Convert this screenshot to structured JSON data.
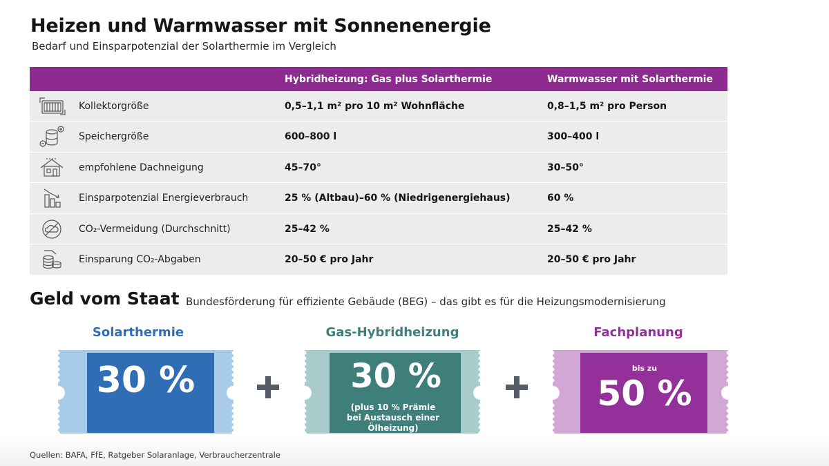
{
  "header": {
    "title": "Heizen und Warmwasser mit Sonnenenergie",
    "subtitle": "Bedarf und Einsparpotenzial der Solarthermie im Vergleich"
  },
  "table": {
    "columns": [
      "Hybridheizung: Gas plus Solarthermie",
      "Warmwasser mit Solarthermie"
    ],
    "rows": [
      {
        "icon": "collector-panel-icon",
        "label": "Kollektorgröße",
        "v1": "0,5–1,1 m² pro 10 m² Wohnfläche",
        "v2": "0,8–1,5 m² pro Person"
      },
      {
        "icon": "storage-tank-icon",
        "label": "Speichergröße",
        "v1": "600–800 l",
        "v2": "300–400 l"
      },
      {
        "icon": "house-roof-icon",
        "label": "empfohlene Dachneigung",
        "v1": "45–70°",
        "v2": "30–50°"
      },
      {
        "icon": "bar-chart-down-icon",
        "label": "Einsparpotenzial Energieverbrauch",
        "v1": "25 % (Altbau)–60 % (Niedrigenergiehaus)",
        "v2": "60 %"
      },
      {
        "icon": "co2-cloud-crossed-icon",
        "label": "CO₂-Vermeidung (Durchschnitt)",
        "v1": "25–42 %",
        "v2": "25–42 %"
      },
      {
        "icon": "coins-stack-icon",
        "label": "Einsparung CO₂-Abgaben",
        "v1": "20–50 € pro Jahr",
        "v2": "20–50 € pro Jahr"
      }
    ]
  },
  "funding": {
    "title": "Geld vom Staat",
    "subtitle": "Bundesförderung für effiziente Gebäude (BEG) – das gibt es für die Heizungsmodernisierung",
    "items": [
      {
        "category": "Solarthermie",
        "value": "30 %",
        "note": "",
        "prefix": ""
      },
      {
        "category": "Gas-Hybridheizung",
        "value": "30 %",
        "note": "(plus 10 % Prämie bei Austausch einer Ölheizung)",
        "prefix": ""
      },
      {
        "category": "Fachplanung",
        "value": "50 %",
        "note": "",
        "prefix": "bis zu"
      }
    ]
  },
  "footer": {
    "source": "Quellen: BAFA, FfE, Ratgeber Solaranlage, Verbraucherzentrale"
  },
  "colors": {
    "header_purple": "#8e2b90",
    "blue": "#2f6db5",
    "blue_light": "#a9cbea",
    "teal": "#3e7e7b",
    "teal_light": "#a8cccb",
    "magenta": "#93309a",
    "magenta_light": "#d2a6d5",
    "blue_title": "#2f6db5",
    "teal_title": "#3e7e7b",
    "magenta_title": "#93309a"
  }
}
